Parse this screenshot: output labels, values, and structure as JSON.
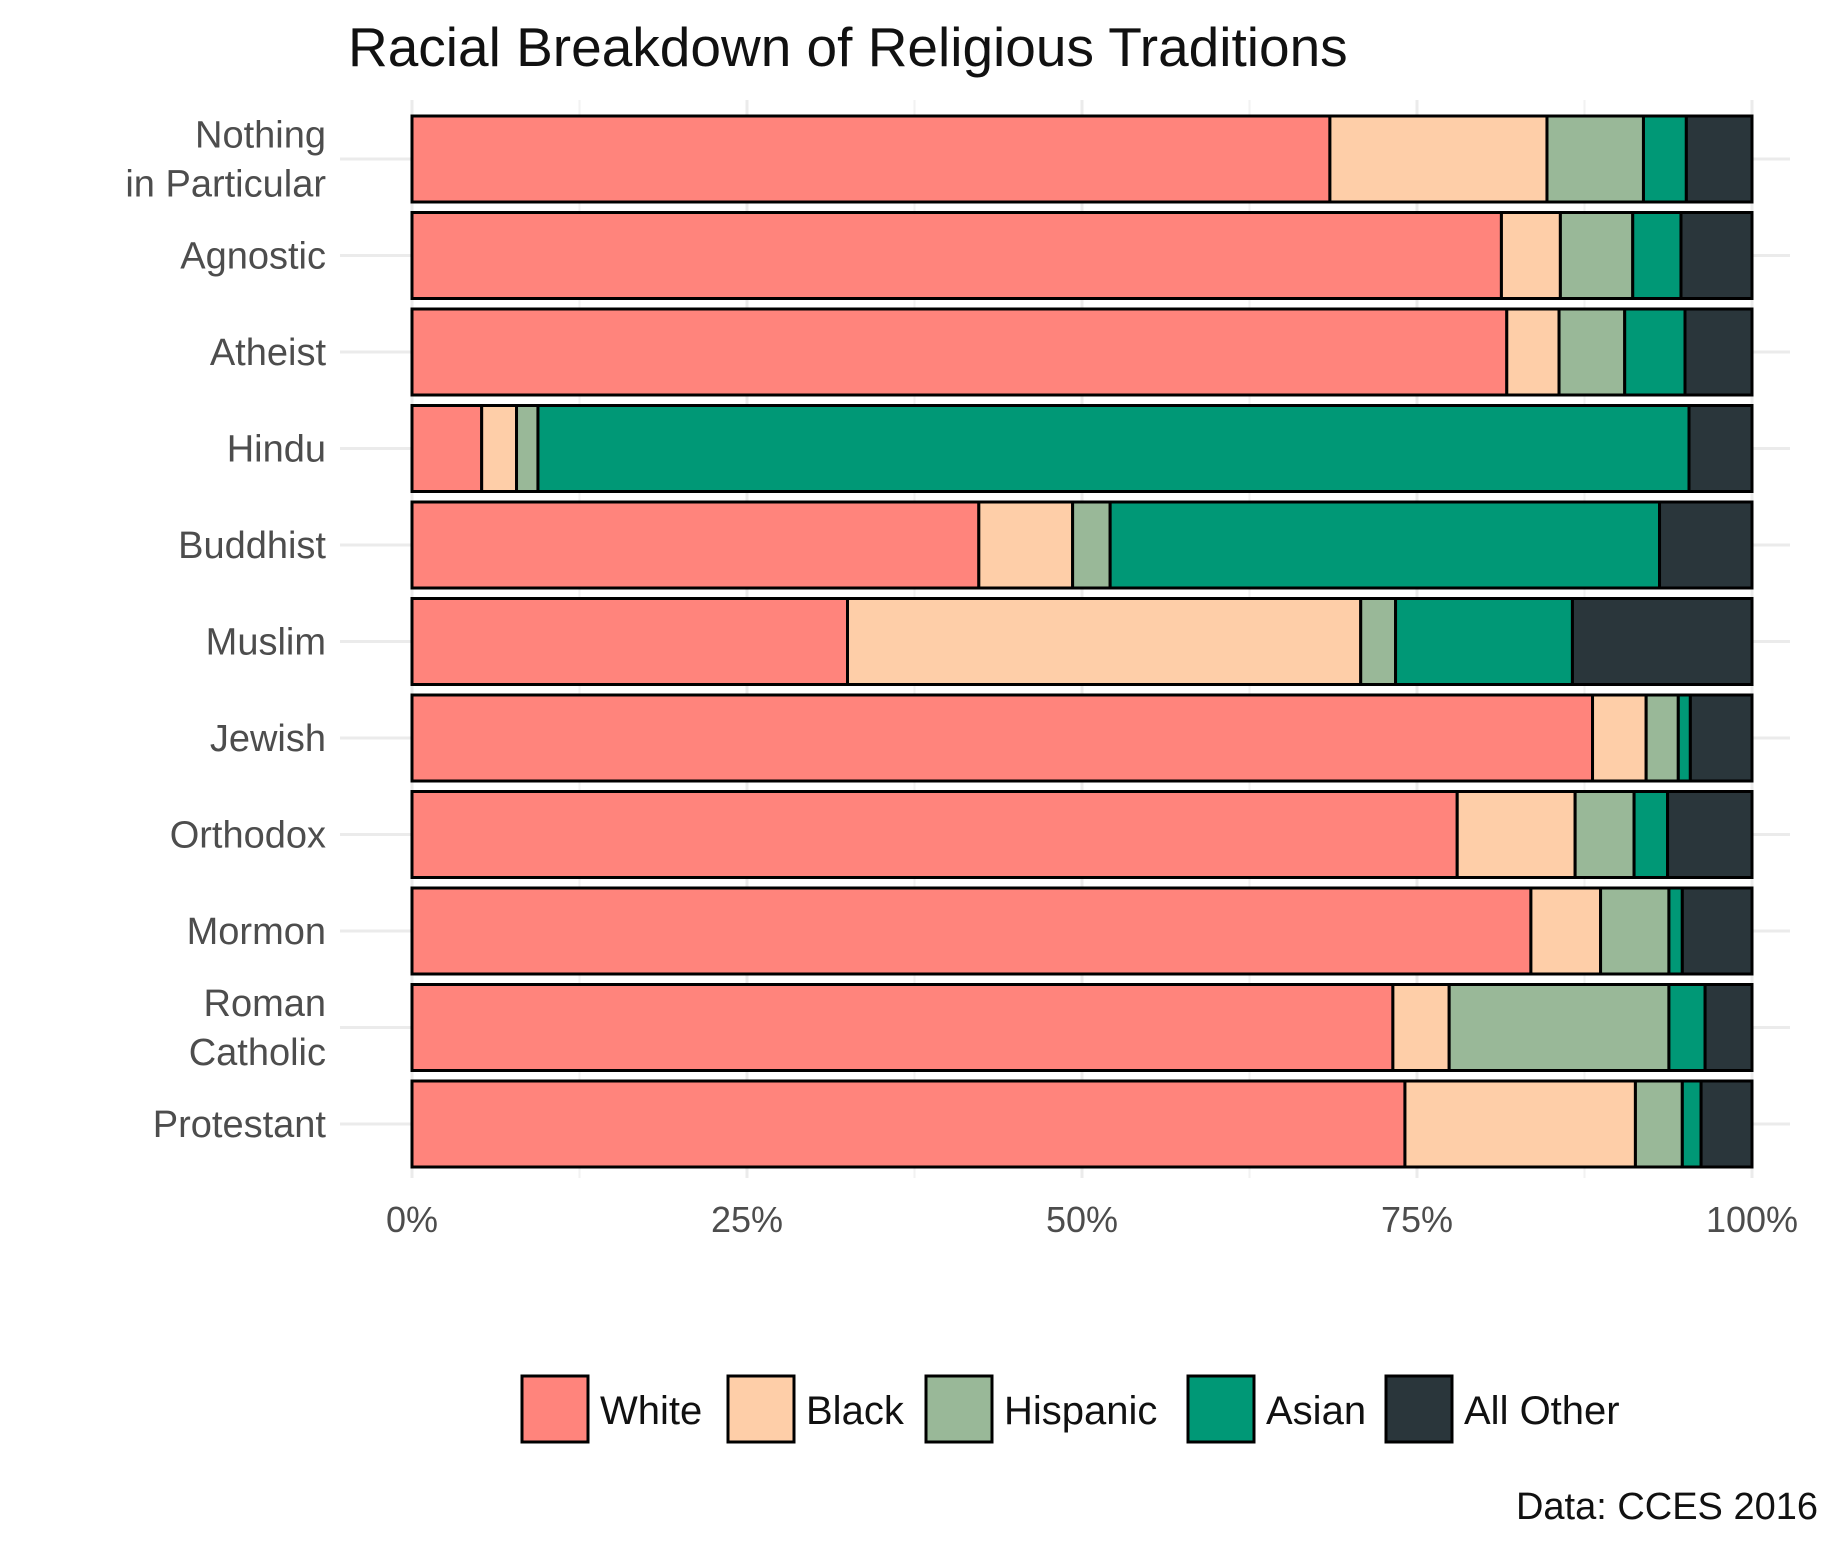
{
  "chart_data": {
    "type": "bar",
    "orientation": "horizontal",
    "stacked": true,
    "title": "Racial Breakdown of Religious Traditions",
    "caption": "Data: CCES 2016",
    "xlim": [
      0,
      100
    ],
    "x_ticks": [
      "0%",
      "25%",
      "50%",
      "75%",
      "100%"
    ],
    "grid": true,
    "legend_position": "bottom",
    "categories": [
      [
        "Nothing",
        "in Particular"
      ],
      [
        "Agnostic"
      ],
      [
        "Atheist"
      ],
      [
        "Hindu"
      ],
      [
        "Buddhist"
      ],
      [
        "Muslim"
      ],
      [
        "Jewish"
      ],
      [
        "Orthodox"
      ],
      [
        "Mormon"
      ],
      [
        "Roman",
        "Catholic"
      ],
      [
        "Protestant"
      ]
    ],
    "series": [
      {
        "name": "White",
        "color": "#FF847C",
        "values": [
          68.5,
          81.3,
          81.7,
          5.2,
          42.3,
          32.5,
          88.1,
          78.0,
          83.5,
          73.2,
          74.1
        ]
      },
      {
        "name": "Black",
        "color": "#FECEA8",
        "values": [
          16.2,
          4.4,
          3.9,
          2.6,
          7.0,
          38.3,
          4.0,
          8.8,
          5.2,
          4.2,
          17.2
        ]
      },
      {
        "name": "Hispanic",
        "color": "#99B898",
        "values": [
          7.2,
          5.4,
          4.9,
          1.6,
          2.8,
          2.6,
          2.4,
          4.4,
          5.1,
          16.4,
          3.5
        ]
      },
      {
        "name": "Asian",
        "color": "#009876",
        "values": [
          3.2,
          3.6,
          4.5,
          85.9,
          41.0,
          13.2,
          0.9,
          2.5,
          1.0,
          2.7,
          1.4
        ]
      },
      {
        "name": "All Other",
        "color": "#2A363B",
        "values": [
          4.9,
          5.3,
          5.0,
          4.7,
          6.9,
          13.4,
          4.6,
          6.3,
          5.2,
          3.5,
          3.8
        ]
      }
    ]
  }
}
